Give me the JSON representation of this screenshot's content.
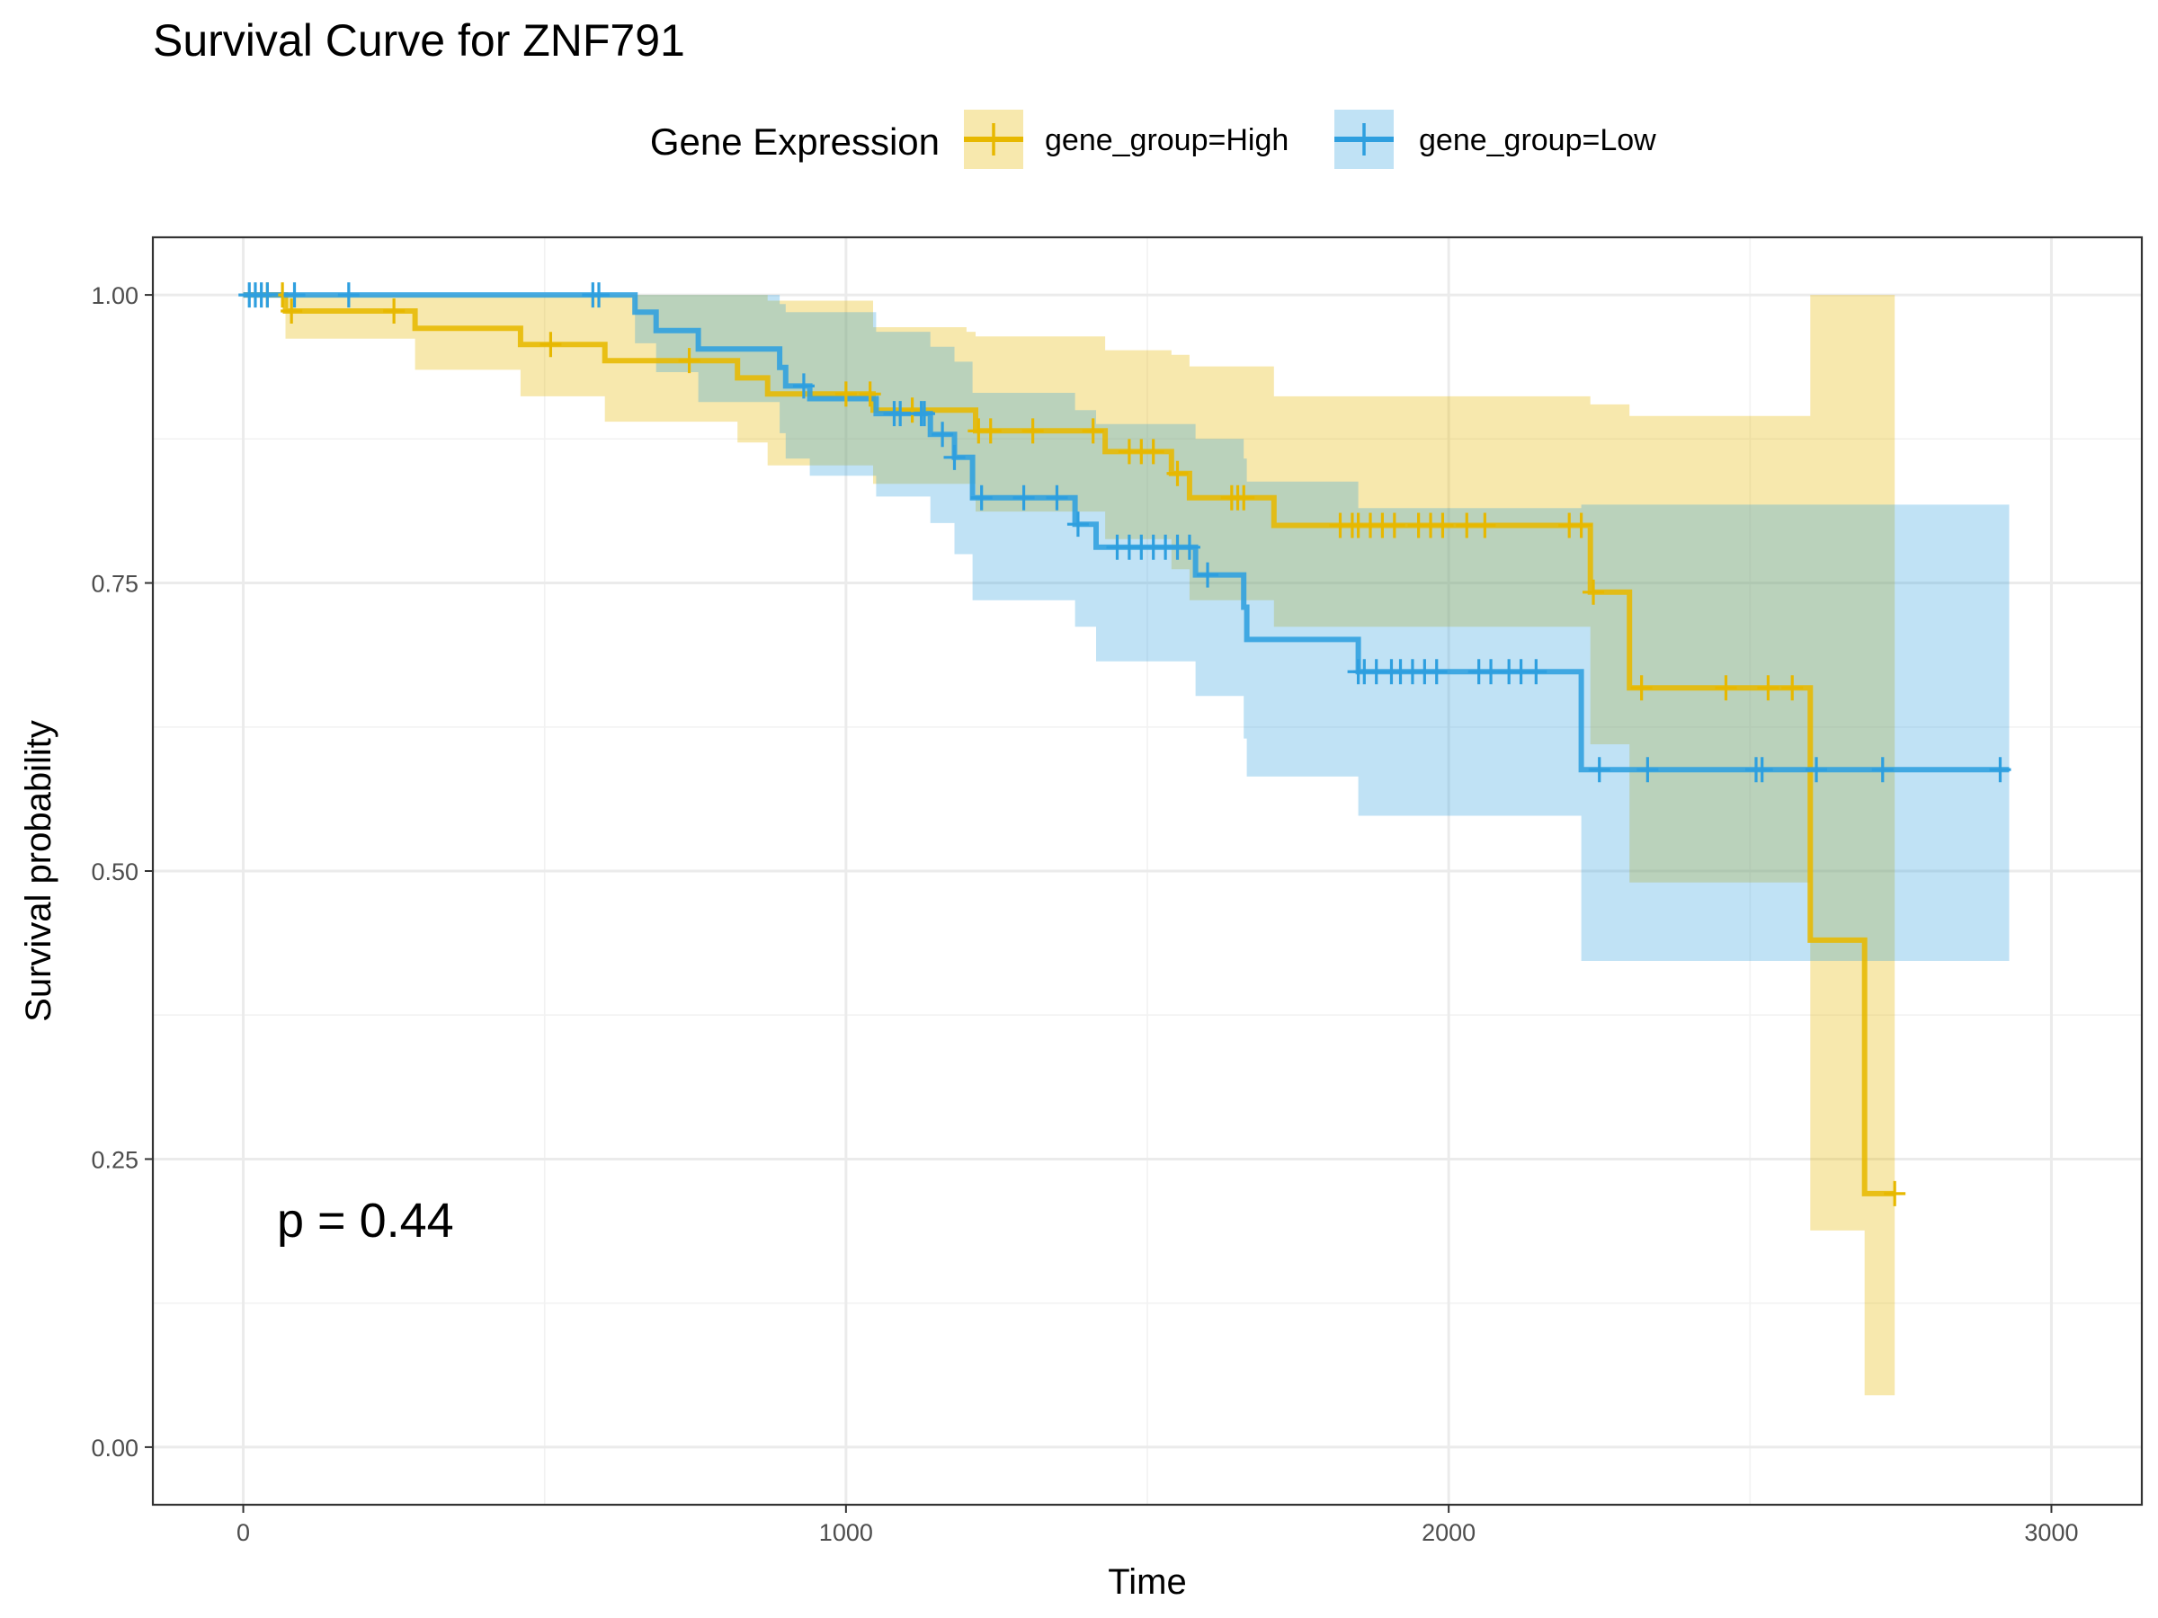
{
  "chart_data": {
    "type": "line",
    "subtype": "kaplan-meier step",
    "title": "Survival Curve for ZNF791",
    "xlabel": "Time",
    "ylabel": "Survival probability",
    "xlim": [
      -150,
      3150
    ],
    "ylim": [
      -0.05,
      1.05
    ],
    "x_ticks": [
      0,
      1000,
      2000,
      3000
    ],
    "y_ticks": [
      0.0,
      0.25,
      0.5,
      0.75,
      1.0
    ],
    "x_tick_labels": [
      "0",
      "1000",
      "2000",
      "3000"
    ],
    "y_tick_labels": [
      "0.00",
      "0.25",
      "0.50",
      "0.75",
      "1.00"
    ],
    "grid": true,
    "legend": {
      "title": "Gene Expression",
      "position": "top"
    },
    "annotation": "p = 0.44",
    "series": [
      {
        "name": "gene_group=High",
        "color": "#E7B800",
        "steps": [
          [
            0,
            1.0
          ],
          [
            70,
            0.986
          ],
          [
            285,
            0.971
          ],
          [
            460,
            0.957
          ],
          [
            600,
            0.943
          ],
          [
            820,
            0.928
          ],
          [
            870,
            0.914
          ],
          [
            1045,
            0.9
          ],
          [
            1215,
            0.882
          ],
          [
            1430,
            0.864
          ],
          [
            1540,
            0.845
          ],
          [
            1570,
            0.824
          ],
          [
            1710,
            0.8
          ],
          [
            2235,
            0.742
          ],
          [
            2300,
            0.659
          ],
          [
            2600,
            0.44
          ],
          [
            2690,
            0.22
          ]
        ],
        "end_x": 2740,
        "ci_upper": [
          [
            0,
            1.0
          ],
          [
            820,
            1.0
          ],
          [
            870,
            0.995
          ],
          [
            1045,
            0.972
          ],
          [
            1150,
            0.972
          ],
          [
            1200,
            0.968
          ],
          [
            1215,
            0.964
          ],
          [
            1430,
            0.952
          ],
          [
            1540,
            0.948
          ],
          [
            1570,
            0.938
          ],
          [
            1710,
            0.912
          ],
          [
            2235,
            0.905
          ],
          [
            2300,
            0.895
          ],
          [
            2600,
            1.0
          ],
          [
            2740,
            1.0
          ]
        ],
        "ci_lower": [
          [
            0,
            1.0
          ],
          [
            70,
            0.962
          ],
          [
            285,
            0.935
          ],
          [
            460,
            0.912
          ],
          [
            600,
            0.89
          ],
          [
            820,
            0.872
          ],
          [
            870,
            0.852
          ],
          [
            1045,
            0.836
          ],
          [
            1215,
            0.812
          ],
          [
            1430,
            0.788
          ],
          [
            1540,
            0.762
          ],
          [
            1570,
            0.735
          ],
          [
            1710,
            0.712
          ],
          [
            2235,
            0.61
          ],
          [
            2300,
            0.49
          ],
          [
            2600,
            0.188
          ],
          [
            2690,
            0.045
          ],
          [
            2740,
            0.045
          ]
        ],
        "censor_x": [
          40,
          65,
          80,
          250,
          510,
          740,
          1000,
          1040,
          1110,
          1220,
          1240,
          1310,
          1410,
          1470,
          1490,
          1510,
          1550,
          1640,
          1650,
          1660,
          1820,
          1840,
          1850,
          1870,
          1890,
          1910,
          1950,
          1970,
          1990,
          2030,
          2060,
          2200,
          2220,
          2240,
          2320,
          2460,
          2530,
          2570,
          2740
        ]
      },
      {
        "name": "gene_group=Low",
        "color": "#2E9FDF",
        "steps": [
          [
            0,
            1.0
          ],
          [
            650,
            0.985
          ],
          [
            685,
            0.969
          ],
          [
            755,
            0.953
          ],
          [
            890,
            0.937
          ],
          [
            900,
            0.921
          ],
          [
            940,
            0.91
          ],
          [
            1050,
            0.897
          ],
          [
            1140,
            0.879
          ],
          [
            1180,
            0.859
          ],
          [
            1210,
            0.824
          ],
          [
            1380,
            0.801
          ],
          [
            1415,
            0.781
          ],
          [
            1580,
            0.757
          ],
          [
            1660,
            0.729
          ],
          [
            1665,
            0.701
          ],
          [
            1850,
            0.673
          ],
          [
            2220,
            0.588
          ]
        ],
        "end_x": 2930,
        "ci_upper": [
          [
            0,
            1.0
          ],
          [
            815,
            1.0
          ],
          [
            890,
            0.992
          ],
          [
            900,
            0.985
          ],
          [
            1050,
            0.968
          ],
          [
            1140,
            0.955
          ],
          [
            1180,
            0.942
          ],
          [
            1210,
            0.915
          ],
          [
            1380,
            0.9
          ],
          [
            1415,
            0.888
          ],
          [
            1580,
            0.875
          ],
          [
            1660,
            0.858
          ],
          [
            1665,
            0.838
          ],
          [
            1850,
            0.815
          ],
          [
            2220,
            0.818
          ],
          [
            2930,
            0.818
          ]
        ],
        "ci_lower": [
          [
            0,
            1.0
          ],
          [
            650,
            0.958
          ],
          [
            685,
            0.933
          ],
          [
            755,
            0.907
          ],
          [
            890,
            0.88
          ],
          [
            900,
            0.858
          ],
          [
            940,
            0.843
          ],
          [
            1050,
            0.825
          ],
          [
            1140,
            0.802
          ],
          [
            1180,
            0.775
          ],
          [
            1210,
            0.735
          ],
          [
            1380,
            0.712
          ],
          [
            1415,
            0.682
          ],
          [
            1580,
            0.652
          ],
          [
            1660,
            0.615
          ],
          [
            1665,
            0.582
          ],
          [
            1850,
            0.548
          ],
          [
            2220,
            0.422
          ],
          [
            2930,
            0.422
          ]
        ],
        "censor_x": [
          10,
          20,
          30,
          40,
          85,
          175,
          580,
          590,
          930,
          1080,
          1090,
          1125,
          1130,
          1160,
          1180,
          1225,
          1295,
          1350,
          1385,
          1450,
          1470,
          1490,
          1510,
          1530,
          1550,
          1570,
          1600,
          1850,
          1860,
          1880,
          1905,
          1920,
          1940,
          1960,
          1980,
          2050,
          2070,
          2100,
          2120,
          2145,
          2250,
          2330,
          2510,
          2520,
          2610,
          2720,
          2915
        ]
      }
    ]
  }
}
